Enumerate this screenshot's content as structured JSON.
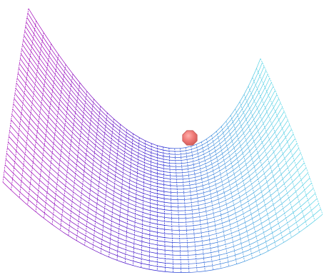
{
  "scene": {
    "surface": "saddle-wireframe",
    "colors": {
      "magenta": "#a000b8",
      "cyan": "#57d6e6",
      "blue": "#1a1ad0",
      "ball_fill": "#f07b78",
      "ball_edge": "#c75a58",
      "background": "#ffffff"
    }
  }
}
